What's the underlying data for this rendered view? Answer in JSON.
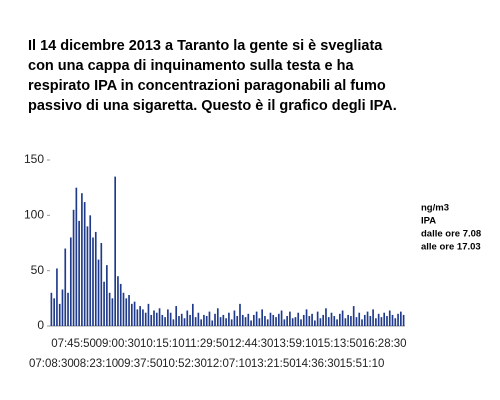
{
  "chart_data": {
    "type": "bar",
    "title": [
      "Il 14 dicembre 2013 a Taranto la gente si è svegliata",
      "con una cappa di inquinamento sulla testa e ha",
      "respirato IPA in concentrazioni paragonabili al fumo",
      "passivo di una sigaretta. Questo è il grafico degli IPA."
    ],
    "annotations": [
      "ng/m3",
      "IPA",
      "dalle ore 7.08",
      "alle ore 17.03"
    ],
    "color": "#1f3a8a",
    "ylim": [
      0,
      150
    ],
    "yticks": [
      0,
      50,
      100,
      150
    ],
    "categories": [
      "07:08:30",
      null,
      null,
      null,
      null,
      null,
      null,
      null,
      "07:45:50",
      null,
      null,
      null,
      null,
      null,
      null,
      null,
      "08:23:10",
      null,
      null,
      null,
      null,
      null,
      null,
      null,
      "09:00:30",
      null,
      null,
      null,
      null,
      null,
      null,
      null,
      "09:37:50",
      null,
      null,
      null,
      null,
      null,
      null,
      null,
      "10:15:10",
      null,
      null,
      null,
      null,
      null,
      null,
      null,
      "10:52:30",
      null,
      null,
      null,
      null,
      null,
      null,
      null,
      "11:29:50",
      null,
      null,
      null,
      null,
      null,
      null,
      null,
      "12:07:10",
      null,
      null,
      null,
      null,
      null,
      null,
      null,
      "12:44:30",
      null,
      null,
      null,
      null,
      null,
      null,
      null,
      "13:21:50",
      null,
      null,
      null,
      null,
      null,
      null,
      null,
      "13:59:10",
      null,
      null,
      null,
      null,
      null,
      null,
      null,
      "14:36:30",
      null,
      null,
      null,
      null,
      null,
      null,
      null,
      "15:13:50",
      null,
      null,
      null,
      null,
      null,
      null,
      null,
      "15:51:10",
      null,
      null,
      null,
      null,
      null,
      null,
      null,
      "16:28:30",
      null,
      null,
      null,
      null,
      null,
      null,
      null
    ],
    "values": [
      30,
      25,
      52,
      20,
      33,
      70,
      30,
      80,
      105,
      125,
      95,
      120,
      112,
      90,
      100,
      80,
      85,
      60,
      75,
      40,
      55,
      30,
      25,
      135,
      45,
      38,
      30,
      25,
      28,
      20,
      22,
      15,
      18,
      15,
      12,
      20,
      10,
      14,
      12,
      16,
      10,
      8,
      15,
      12,
      6,
      18,
      9,
      11,
      7,
      14,
      10,
      20,
      8,
      12,
      6,
      10,
      9,
      13,
      5,
      11,
      16,
      8,
      10,
      7,
      12,
      6,
      14,
      9,
      20,
      10,
      8,
      11,
      5,
      10,
      13,
      7,
      15,
      9,
      6,
      12,
      10,
      8,
      11,
      14,
      6,
      9,
      13,
      7,
      8,
      12,
      6,
      10,
      15,
      9,
      11,
      5,
      13,
      7,
      10,
      16,
      8,
      12,
      9,
      6,
      11,
      14,
      7,
      10,
      9,
      18,
      8,
      12,
      6,
      10,
      13,
      9,
      15,
      7,
      11,
      8,
      12,
      9,
      14,
      10,
      7,
      11,
      13,
      10
    ]
  }
}
